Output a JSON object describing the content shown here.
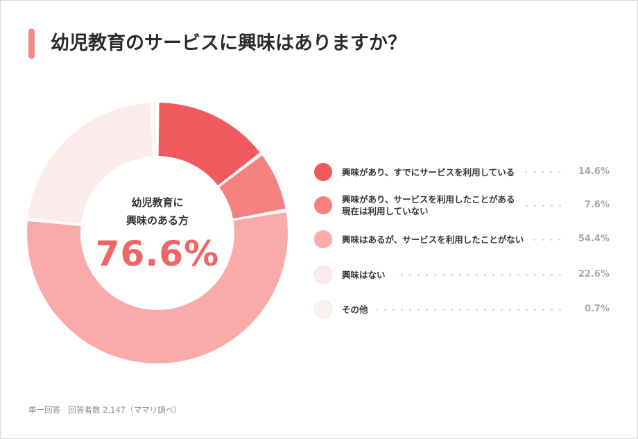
{
  "title": "幼児教育のサービスに興味はありますか？",
  "center": {
    "caption_line1": "幼児教育に",
    "caption_line2": "興味のある方",
    "value": "76.6%"
  },
  "footnote": "単一回答　回答者数 2,147（ママリ調べ）",
  "colors": {
    "accent": "#f48a8a",
    "center_value": "#f06565"
  },
  "chart_data": {
    "type": "pie",
    "categories": [
      "興味があり、すでにサービスを利用している",
      "興味があり、サービスを利用したことがある\n現在は利用していない",
      "興味はあるが、サービスを利用したことがない",
      "興味はない",
      "その他"
    ],
    "values": [
      14.6,
      7.6,
      54.4,
      22.6,
      0.7
    ],
    "value_labels": [
      "14.6%",
      "7.6%",
      "54.4%",
      "22.6%",
      "0.7%"
    ],
    "colors": [
      "#ee5a5e",
      "#f58181",
      "#faaaa9",
      "#fdeaea",
      "#fdf3ee"
    ],
    "legend_position": "right",
    "donut": true
  }
}
